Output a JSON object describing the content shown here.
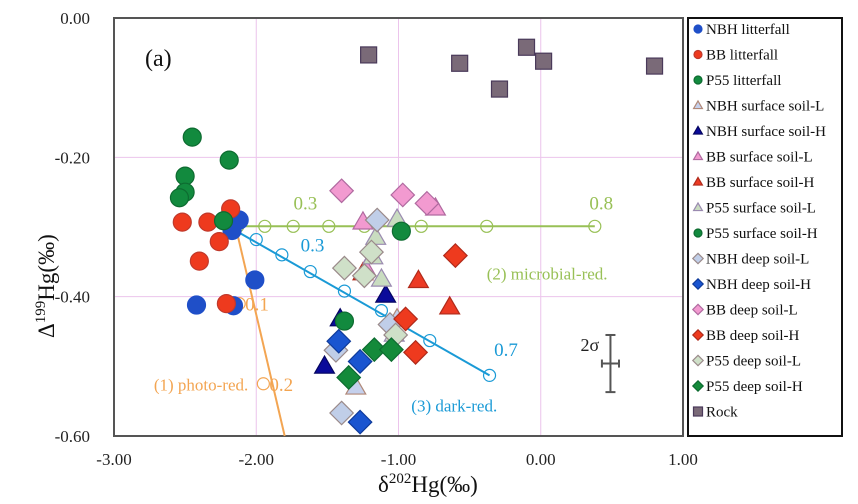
{
  "chart_data": {
    "type": "scatter",
    "panel_label": "(a)",
    "xlabel": "δ202Hg(‰)",
    "xlabel_parts": {
      "pre": "δ",
      "sup": "202",
      "post": "Hg(‰)"
    },
    "ylabel": "Δ199Hg(‰)",
    "ylabel_parts": {
      "pre": "Δ",
      "sup": "199",
      "post": "Hg(‰)"
    },
    "xlim": [
      -3.0,
      1.0
    ],
    "ylim": [
      -0.6,
      0.0
    ],
    "xticks": [
      -3.0,
      -2.0,
      -1.0,
      0.0,
      1.0
    ],
    "xtick_labels": [
      "-3.00",
      "-2.00",
      "-1.00",
      "0.00",
      "1.00"
    ],
    "yticks": [
      0.0,
      -0.2,
      -0.4,
      -0.6
    ],
    "ytick_labels": [
      "0.00",
      "-0.20",
      "-0.40",
      "-0.60"
    ],
    "grid": true,
    "legend_position": "right",
    "series": [
      {
        "name": "NBH litterfall",
        "marker": "circle",
        "fill": "#1f4fc8",
        "stroke": "#1f4fc8",
        "points": [
          [
            -2.12,
            -0.29
          ],
          [
            -2.17,
            -0.305
          ],
          [
            -2.01,
            -0.376
          ],
          [
            -2.42,
            -0.412
          ],
          [
            -2.16,
            -0.413
          ]
        ]
      },
      {
        "name": "BB litterfall",
        "marker": "circle",
        "fill": "#ee3a1e",
        "stroke": "#c0392b",
        "points": [
          [
            -2.18,
            -0.274
          ],
          [
            -2.52,
            -0.293
          ],
          [
            -2.34,
            -0.293
          ],
          [
            -2.26,
            -0.321
          ],
          [
            -2.4,
            -0.349
          ],
          [
            -2.21,
            -0.41
          ]
        ]
      },
      {
        "name": "P55 litterfall",
        "marker": "circle",
        "fill": "#128a3e",
        "stroke": "#0d6b30",
        "points": [
          [
            -2.45,
            -0.171
          ],
          [
            -2.19,
            -0.204
          ],
          [
            -2.5,
            -0.227
          ],
          [
            -2.5,
            -0.25
          ],
          [
            -2.54,
            -0.258
          ],
          [
            -2.23,
            -0.291
          ]
        ]
      },
      {
        "name": "NBH surface soil-L",
        "marker": "triangle",
        "fill": "#c5d0ec",
        "stroke": "#b08878",
        "points": [
          [
            -1.01,
            -0.432
          ],
          [
            -1.3,
            -0.53
          ]
        ]
      },
      {
        "name": "NBH surface soil-H",
        "marker": "triangle",
        "fill": "#0a0a9a",
        "stroke": "#050560",
        "points": [
          [
            -1.09,
            -0.398
          ],
          [
            -1.41,
            -0.432
          ],
          [
            -1.52,
            -0.5
          ]
        ]
      },
      {
        "name": "BB surface soil-L",
        "marker": "triangle",
        "fill": "#f29ad0",
        "stroke": "#b06aa0",
        "points": [
          [
            -0.74,
            -0.273
          ],
          [
            -1.25,
            -0.293
          ],
          [
            -1.23,
            -0.36
          ]
        ]
      },
      {
        "name": "BB surface soil-H",
        "marker": "triangle",
        "fill": "#ec3a24",
        "stroke": "#b02a1a",
        "points": [
          [
            -1.25,
            -0.366
          ],
          [
            -0.86,
            -0.377
          ],
          [
            -0.64,
            -0.415
          ]
        ]
      },
      {
        "name": "P55 surface soil-L",
        "marker": "triangle",
        "fill": "#c9dcc0",
        "stroke": "#9a8ab0",
        "points": [
          [
            -1.01,
            -0.289
          ],
          [
            -1.16,
            -0.315
          ],
          [
            -1.18,
            -0.343
          ],
          [
            -1.12,
            -0.375
          ],
          [
            -1.03,
            -0.454
          ]
        ]
      },
      {
        "name": "P55 surface soil-H",
        "marker": "circle",
        "fill": "#128a3e",
        "stroke": "#0d6b30",
        "points": [
          [
            -0.98,
            -0.306
          ],
          [
            -1.38,
            -0.435
          ]
        ]
      },
      {
        "name": "NBH deep soil-L",
        "marker": "diamond",
        "fill": "#c0cee8",
        "stroke": "#9a8a8a",
        "points": [
          [
            -1.15,
            -0.29
          ],
          [
            -1.06,
            -0.44
          ],
          [
            -1.44,
            -0.477
          ],
          [
            -1.4,
            -0.567
          ]
        ]
      },
      {
        "name": "NBH deep soil-H",
        "marker": "diamond",
        "fill": "#1a55d0",
        "stroke": "#0e3a9a",
        "points": [
          [
            -1.42,
            -0.464
          ],
          [
            -1.27,
            -0.493
          ],
          [
            -1.27,
            -0.58
          ]
        ]
      },
      {
        "name": "BB deep soil-L",
        "marker": "diamond",
        "fill": "#f29ad0",
        "stroke": "#b06aa0",
        "points": [
          [
            -1.4,
            -0.248
          ],
          [
            -0.97,
            -0.254
          ],
          [
            -0.8,
            -0.266
          ]
        ]
      },
      {
        "name": "BB deep soil-H",
        "marker": "diamond",
        "fill": "#ee3a1e",
        "stroke": "#b02a1a",
        "points": [
          [
            -0.6,
            -0.341
          ],
          [
            -0.95,
            -0.432
          ],
          [
            -0.88,
            -0.48
          ]
        ]
      },
      {
        "name": "P55 deep soil-L",
        "marker": "diamond",
        "fill": "#cfe0c8",
        "stroke": "#9a8a8a",
        "points": [
          [
            -1.38,
            -0.359
          ],
          [
            -1.19,
            -0.336
          ],
          [
            -1.24,
            -0.37
          ],
          [
            -1.02,
            -0.455
          ]
        ]
      },
      {
        "name": "P55 deep soil-H",
        "marker": "diamond",
        "fill": "#148a3a",
        "stroke": "#0d6b30",
        "points": [
          [
            -1.17,
            -0.476
          ],
          [
            -1.05,
            -0.476
          ],
          [
            -1.35,
            -0.516
          ]
        ]
      },
      {
        "name": "Rock",
        "marker": "square",
        "fill": "#7a6a78",
        "stroke": "#4a3a5a",
        "points": [
          [
            -1.21,
            -0.053
          ],
          [
            -0.57,
            -0.065
          ],
          [
            -0.29,
            -0.102
          ],
          [
            -0.1,
            -0.042
          ],
          [
            0.02,
            -0.062
          ],
          [
            0.8,
            -0.069
          ]
        ]
      }
    ],
    "model_lines": [
      {
        "name": "(1) photo-red.",
        "color": "#f3a552",
        "start": [
          -2.15,
          -0.295
        ],
        "end": [
          -1.8,
          -0.6
        ],
        "markers": [
          [
            -2.12,
            -0.41
          ],
          [
            -1.95,
            -0.525
          ]
        ],
        "marker_labels": [
          {
            "text": "0.1",
            "at": [
              -2.12,
              -0.41
            ]
          },
          {
            "text": "0.2",
            "at": [
              -1.95,
              -0.525
            ]
          }
        ],
        "label": "(1) photo-red.",
        "label_at": [
          -2.72,
          -0.535
        ]
      },
      {
        "name": "(2) microbial-red.",
        "color": "#98c056",
        "start": [
          -2.13,
          -0.299
        ],
        "end": [
          0.38,
          -0.299
        ],
        "markers": [
          [
            -2.13,
            -0.299
          ],
          [
            -1.94,
            -0.299
          ],
          [
            -1.74,
            -0.299
          ],
          [
            -1.49,
            -0.299
          ],
          [
            -1.24,
            -0.299
          ],
          [
            -0.84,
            -0.299
          ],
          [
            -0.38,
            -0.299
          ],
          [
            0.38,
            -0.299
          ]
        ],
        "marker_labels": [
          {
            "text": "0.3",
            "at": [
              -1.78,
              -0.265
            ]
          },
          {
            "text": "0.8",
            "at": [
              0.3,
              -0.265
            ]
          }
        ],
        "label": "(2) microbial-red.",
        "label_at": [
          -0.38,
          -0.375
        ]
      },
      {
        "name": "(3) dark-red.",
        "color": "#1a9ad6",
        "start": [
          -2.13,
          -0.307
        ],
        "end": [
          -0.36,
          -0.513
        ],
        "markers": [
          [
            -2.0,
            -0.318
          ],
          [
            -1.82,
            -0.34
          ],
          [
            -1.62,
            -0.364
          ],
          [
            -1.38,
            -0.392
          ],
          [
            -1.12,
            -0.42
          ],
          [
            -0.78,
            -0.463
          ],
          [
            -0.36,
            -0.513
          ]
        ],
        "marker_labels": [
          {
            "text": "0.3",
            "at": [
              -1.73,
              -0.325
            ]
          },
          {
            "text": "0.7",
            "at": [
              -0.37,
              -0.475
            ]
          }
        ],
        "label": "(3) dark-red.",
        "label_at": [
          -0.91,
          -0.565
        ]
      }
    ],
    "annotations": {
      "error_bar": {
        "label": "2σ",
        "center": [
          0.49,
          -0.496
        ],
        "y_err": 0.041,
        "x_err": 0.06
      }
    }
  }
}
